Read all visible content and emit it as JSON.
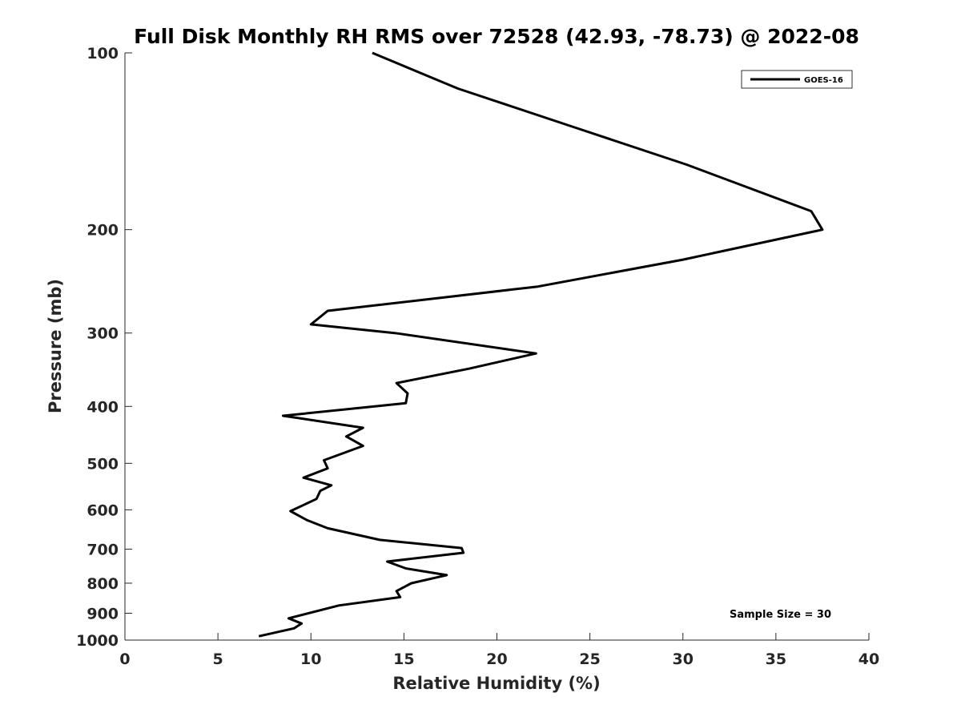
{
  "chart_data": {
    "type": "line",
    "title": "Full Disk Monthly RH RMS over 72528 (42.93, -78.73) @ 2022-08",
    "xlabel": "Relative Humidity (%)",
    "ylabel": "Pressure (mb)",
    "xlim": [
      0,
      40
    ],
    "ylim": [
      100,
      1000
    ],
    "y_scale": "log",
    "y_reversed": true,
    "x_ticks": [
      0,
      5,
      10,
      15,
      20,
      25,
      30,
      35,
      40
    ],
    "x_tick_labels": [
      "0",
      "5",
      "10",
      "15",
      "20",
      "25",
      "30",
      "35",
      "40"
    ],
    "y_ticks": [
      100,
      200,
      300,
      400,
      500,
      600,
      700,
      800,
      900,
      1000
    ],
    "y_tick_labels": [
      "100",
      "200",
      "300",
      "400",
      "500",
      "600",
      "700",
      "800",
      "900",
      "1000"
    ],
    "grid": false,
    "legend_position": "top-right",
    "annotation": "Sample Size = 30",
    "series": [
      {
        "name": "GOES-16",
        "color": "#000000",
        "x": [
          13.3,
          17.9,
          24.5,
          30.2,
          36.9,
          37.5,
          30.0,
          22.2,
          10.9,
          10.0,
          14.5,
          22.1,
          18.5,
          14.6,
          15.2,
          15.1,
          8.5,
          12.8,
          11.9,
          12.8,
          10.7,
          10.9,
          9.6,
          11.1,
          10.5,
          10.3,
          8.9,
          9.8,
          10.9,
          13.7,
          18.1,
          18.2,
          14.1,
          15.1,
          17.3,
          15.4,
          14.6,
          14.8,
          11.5,
          8.8,
          9.5,
          9.1,
          7.2
        ],
        "y": [
          100,
          115,
          135,
          155,
          186,
          200,
          225,
          250,
          275,
          290,
          300,
          325,
          345,
          365,
          380,
          395,
          415,
          435,
          450,
          467,
          494,
          510,
          529,
          545,
          557,
          575,
          603,
          625,
          645,
          675,
          697,
          710,
          735,
          755,
          775,
          800,
          825,
          845,
          873,
          918,
          937,
          955,
          985
        ]
      }
    ]
  }
}
